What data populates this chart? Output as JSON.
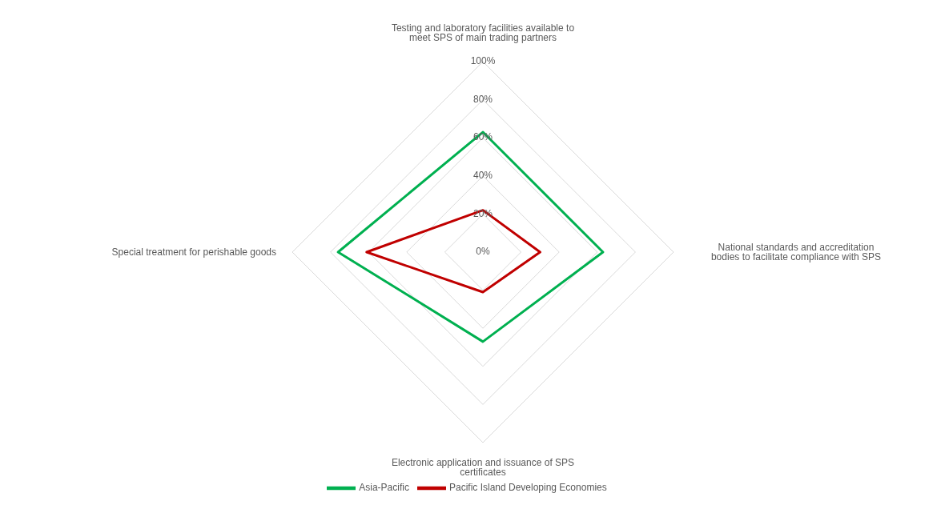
{
  "chart_data": {
    "type": "radar",
    "categories": [
      "Testing and laboratory facilities available to meet SPS of main trading partners",
      "National standards and accreditation bodies to facilitate compliance with SPS",
      "Electronic application and issuance of SPS certificates",
      "Special treatment for perishable goods"
    ],
    "series": [
      {
        "name": "Asia-Pacific",
        "color": "#00b050",
        "values": [
          63,
          63,
          47,
          76
        ]
      },
      {
        "name": "Pacific Island Developing Economies",
        "color": "#c00000",
        "values": [
          22,
          30,
          21,
          61
        ]
      }
    ],
    "ylim": [
      0,
      100
    ],
    "yticks": [
      {
        "value": 0,
        "label": "0%"
      },
      {
        "value": 20,
        "label": "20%"
      },
      {
        "value": 40,
        "label": "40%"
      },
      {
        "value": 60,
        "label": "60%"
      },
      {
        "value": 80,
        "label": "80%"
      },
      {
        "value": 100,
        "label": "100%"
      }
    ],
    "grid": true,
    "legend": "bottom",
    "marker": "none",
    "line_style": "solid"
  }
}
